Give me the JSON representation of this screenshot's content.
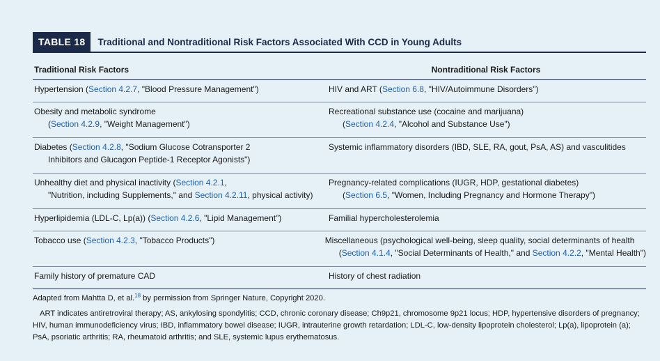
{
  "table": {
    "label": "TABLE 18",
    "title": "Traditional and Nontraditional Risk Factors Associated With CCD in Young Adults",
    "headers": {
      "left": "Traditional Risk Factors",
      "right": "Nontraditional Risk Factors"
    },
    "rows": [
      {
        "left": [
          [
            "Hypertension (",
            [
              "Section 4.2.7"
            ],
            ", \"Blood Pressure Management\")"
          ]
        ],
        "right": [
          [
            "HIV and ART (",
            [
              "Section 6.8"
            ],
            ", \"HIV/Autoimmune Disorders\")"
          ]
        ]
      },
      {
        "left": [
          [
            "Obesity and metabolic syndrome"
          ],
          [
            "(",
            [
              "Section 4.2.9"
            ],
            ", \"Weight Management\")"
          ]
        ],
        "right": [
          [
            "Recreational substance use (cocaine and marijuana)"
          ],
          [
            "(",
            [
              "Section 4.2.4"
            ],
            ", \"Alcohol and Substance Use\")"
          ]
        ]
      },
      {
        "left": [
          [
            "Diabetes (",
            [
              "Section 4.2.8"
            ],
            ", \"Sodium Glucose Cotransporter 2"
          ],
          [
            "Inhibitors and Glucagon Peptide-1 Receptor Agonists\")"
          ]
        ],
        "right": [
          [
            "Systemic inflammatory disorders (IBD, SLE, RA, gout, PsA, AS) and vasculitides"
          ]
        ]
      },
      {
        "left": [
          [
            "Unhealthy diet and physical inactivity (",
            [
              "Section 4.2.1"
            ],
            ","
          ],
          [
            "\"Nutrition, including Supplements,\" and ",
            [
              "Section 4.2.11"
            ],
            ", physical activity)"
          ]
        ],
        "right": [
          [
            "Pregnancy-related complications (IUGR, HDP, gestational diabetes)"
          ],
          [
            "(",
            [
              "Section 6.5"
            ],
            ", \"Women, Including Pregnancy and Hormone Therapy\")"
          ]
        ]
      },
      {
        "left": [
          [
            "Hyperlipidemia (LDL-C, Lp(a)) (",
            [
              "Section 4.2.6"
            ],
            ", \"Lipid Management\")"
          ]
        ],
        "right": [
          [
            "Familial hypercholesterolemia"
          ]
        ]
      },
      {
        "left": [
          [
            "Tobacco use (",
            [
              "Section 4.2.3"
            ],
            ", \"Tobacco Products\")"
          ]
        ],
        "right": [
          [
            "Miscellaneous (psychological well-being, sleep quality, social determinants of health"
          ],
          [
            "(",
            [
              "Section 4.1.4"
            ],
            ", \"Social Determinants of Health,\" and ",
            [
              "Section 4.2.2"
            ],
            ", \"Mental Health\")"
          ]
        ]
      },
      {
        "left": [
          [
            "Family history of premature CAD"
          ]
        ],
        "right": [
          [
            "History of chest radiation"
          ]
        ]
      }
    ]
  },
  "footer": {
    "adapted_before": "Adapted from Mahtta D, et al.",
    "adapted_ref": "18",
    "adapted_after": " by permission from Springer Nature, Copyright 2020.",
    "abbreviations": "ART indicates antiretroviral therapy; AS, ankylosing spondylitis; CCD, chronic coronary disease; Ch9p21, chromosome 9p21 locus; HDP, hypertensive disorders of pregnancy; HIV, human immunodeficiency virus; IBD, inflammatory bowel disease; IUGR, intrauterine growth retardation; LDL-C, low-density lipoprotein cholesterol; Lp(a), lipoprotein (a); PsA, psoriatic arthritis; RA, rheumatoid arthritis; and SLE, systemic lupus erythematosus."
  }
}
